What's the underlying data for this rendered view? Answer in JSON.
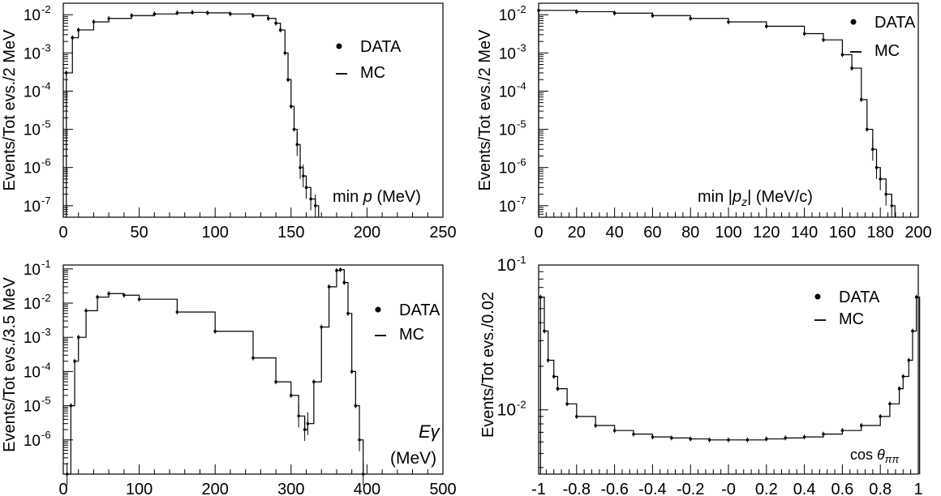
{
  "chart_data": [
    {
      "type": "line",
      "x_ticks": [
        "0",
        "50",
        "100",
        "150",
        "200",
        "250"
      ],
      "xlim": [
        0,
        250
      ],
      "ylog": true,
      "ylim": [
        5e-08,
        0.02
      ],
      "y_tick_labels": [
        {
          "base": "10",
          "exp": "-2",
          "val": 0.01
        },
        {
          "base": "10",
          "exp": "-3",
          "val": 0.001
        },
        {
          "base": "10",
          "exp": "-4",
          "val": 0.0001
        },
        {
          "base": "10",
          "exp": "-5",
          "val": 1e-05
        },
        {
          "base": "10",
          "exp": "-6",
          "val": 1e-06
        },
        {
          "base": "10",
          "exp": "-7",
          "val": 1e-07
        }
      ],
      "ylabel": "Events/Tot evs./2 MeV",
      "xlabel_parts": [
        "min ",
        "p",
        " (MeV)"
      ],
      "legend": [
        "DATA",
        "MC"
      ],
      "series": [
        {
          "name": "DATA",
          "x": [
            2,
            6,
            10,
            20,
            30,
            45,
            60,
            75,
            85,
            95,
            110,
            125,
            135,
            140,
            143,
            146,
            148,
            150,
            152,
            154,
            156,
            158,
            160,
            163,
            166
          ],
          "y": [
            0.0003,
            0.0025,
            0.004,
            0.0065,
            0.008,
            0.0095,
            0.0105,
            0.0112,
            0.0115,
            0.0112,
            0.0105,
            0.0095,
            0.008,
            0.006,
            0.004,
            0.001,
            0.0002,
            4e-05,
            1e-05,
            4e-06,
            1e-06,
            6e-07,
            3e-07,
            1.5e-07,
            1e-07
          ]
        },
        {
          "name": "MC",
          "x": [
            2,
            6,
            10,
            20,
            30,
            45,
            60,
            75,
            85,
            95,
            110,
            125,
            135,
            140,
            143,
            146,
            148,
            150,
            152,
            154,
            156,
            158,
            160,
            163,
            166
          ],
          "y": [
            0.0003,
            0.0025,
            0.004,
            0.0065,
            0.008,
            0.0095,
            0.0105,
            0.0112,
            0.0115,
            0.0112,
            0.0105,
            0.0095,
            0.008,
            0.006,
            0.004,
            0.001,
            0.0002,
            4e-05,
            1e-05,
            4e-06,
            1e-06,
            6e-07,
            3e-07,
            1.5e-07,
            1e-07
          ]
        }
      ]
    },
    {
      "type": "line",
      "x_ticks": [
        "0",
        "20",
        "40",
        "60",
        "80",
        "100",
        "120",
        "140",
        "160",
        "180",
        "200"
      ],
      "xlim": [
        0,
        200
      ],
      "ylog": true,
      "ylim": [
        5e-08,
        0.02
      ],
      "y_tick_labels": [
        {
          "base": "10",
          "exp": "-2",
          "val": 0.01
        },
        {
          "base": "10",
          "exp": "-3",
          "val": 0.001
        },
        {
          "base": "10",
          "exp": "-4",
          "val": 0.0001
        },
        {
          "base": "10",
          "exp": "-5",
          "val": 1e-05
        },
        {
          "base": "10",
          "exp": "-6",
          "val": 1e-06
        },
        {
          "base": "10",
          "exp": "-7",
          "val": 1e-07
        }
      ],
      "ylabel": "Events/Tot evs./2 MeV",
      "xlabel_parts": [
        "min |",
        "p",
        "z",
        "|   (MeV/c)"
      ],
      "legend": [
        "DATA",
        "MC"
      ],
      "series": [
        {
          "name": "DATA",
          "x": [
            0,
            20,
            40,
            60,
            80,
            100,
            120,
            140,
            150,
            160,
            165,
            170,
            173,
            176,
            178,
            180,
            183,
            186
          ],
          "y": [
            0.013,
            0.012,
            0.011,
            0.0095,
            0.008,
            0.0065,
            0.005,
            0.0032,
            0.0022,
            0.0009,
            0.0004,
            6e-05,
            1e-05,
            3e-06,
            1e-06,
            5e-07,
            2e-07,
            1e-07
          ]
        },
        {
          "name": "MC",
          "x": [
            0,
            20,
            40,
            60,
            80,
            100,
            120,
            140,
            150,
            160,
            165,
            170,
            173,
            176,
            178,
            180,
            183,
            186
          ],
          "y": [
            0.013,
            0.012,
            0.011,
            0.0095,
            0.008,
            0.0065,
            0.005,
            0.0032,
            0.0022,
            0.0009,
            0.0004,
            6e-05,
            1e-05,
            3e-06,
            1e-06,
            5e-07,
            2e-07,
            1e-07
          ]
        }
      ]
    },
    {
      "type": "line",
      "x_ticks": [
        "0",
        "100",
        "200",
        "300",
        "400",
        "500"
      ],
      "xlim": [
        0,
        500
      ],
      "ylog": true,
      "ylim": [
        1e-07,
        0.13
      ],
      "y_tick_labels": [
        {
          "base": "10",
          "exp": "-1",
          "val": 0.1
        },
        {
          "base": "10",
          "exp": "-2",
          "val": 0.01
        },
        {
          "base": "10",
          "exp": "-3",
          "val": 0.001
        },
        {
          "base": "10",
          "exp": "-4",
          "val": 0.0001
        },
        {
          "base": "10",
          "exp": "-5",
          "val": 1e-05
        },
        {
          "base": "10",
          "exp": "-6",
          "val": 1e-06
        }
      ],
      "ylabel": "Events/Tot evs./3.5 MeV",
      "xlabel_parts": [
        "E",
        "γ",
        "(MeV)"
      ],
      "legend": [
        "DATA",
        "MC"
      ],
      "series": [
        {
          "name": "DATA",
          "x": [
            5,
            10,
            15,
            20,
            30,
            45,
            60,
            80,
            100,
            150,
            200,
            250,
            280,
            300,
            310,
            318,
            322,
            330,
            340,
            350,
            360,
            365,
            370,
            375,
            380,
            385,
            390,
            395
          ],
          "y": [
            1e-07,
            1e-05,
            0.0002,
            0.001,
            0.006,
            0.015,
            0.019,
            0.017,
            0.013,
            0.0055,
            0.0015,
            0.00025,
            5e-05,
            2e-05,
            5e-06,
            2e-06,
            3e-06,
            5e-05,
            0.002,
            0.03,
            0.09,
            0.095,
            0.04,
            0.005,
            0.0001,
            1e-05,
            1e-06,
            1e-07
          ]
        },
        {
          "name": "MC",
          "x": [
            5,
            10,
            15,
            20,
            30,
            45,
            60,
            80,
            100,
            150,
            200,
            250,
            280,
            300,
            310,
            318,
            322,
            330,
            340,
            350,
            360,
            365,
            370,
            375,
            380,
            385,
            390,
            395
          ],
          "y": [
            1e-07,
            1e-05,
            0.0002,
            0.001,
            0.006,
            0.015,
            0.019,
            0.017,
            0.013,
            0.0055,
            0.0015,
            0.00025,
            5e-05,
            2e-05,
            5e-06,
            2e-06,
            3e-06,
            5e-05,
            0.002,
            0.03,
            0.09,
            0.095,
            0.04,
            0.005,
            0.0001,
            1e-05,
            1e-06,
            1e-07
          ]
        }
      ]
    },
    {
      "type": "line",
      "x_ticks": [
        "-1",
        "-0.8",
        "-0.6",
        "-0.4",
        "-0.2",
        "-0",
        "0.2",
        "0.4",
        "0.6",
        "0.8",
        "1"
      ],
      "xlim": [
        -1,
        1
      ],
      "ylog": true,
      "ylim": [
        0.0036,
        0.1
      ],
      "y_tick_labels": [
        {
          "base": "10",
          "exp": "-1",
          "val": 0.1
        },
        {
          "base": "10",
          "exp": "-2",
          "val": 0.01
        }
      ],
      "ylabel": "Events/Tot evs./0.02",
      "xlabel_parts": [
        "cos ",
        "θ",
        "ππ"
      ],
      "legend": [
        "DATA",
        "MC"
      ],
      "series": [
        {
          "name": "DATA",
          "x": [
            -0.99,
            -0.97,
            -0.95,
            -0.92,
            -0.9,
            -0.85,
            -0.8,
            -0.7,
            -0.6,
            -0.5,
            -0.4,
            -0.3,
            -0.2,
            -0.1,
            0,
            0.1,
            0.2,
            0.3,
            0.4,
            0.5,
            0.6,
            0.7,
            0.8,
            0.85,
            0.9,
            0.92,
            0.95,
            0.97,
            0.99
          ],
          "y": [
            0.06,
            0.035,
            0.022,
            0.017,
            0.014,
            0.011,
            0.009,
            0.0078,
            0.0072,
            0.0068,
            0.0065,
            0.0064,
            0.0063,
            0.0062,
            0.0062,
            0.0062,
            0.0063,
            0.0064,
            0.0065,
            0.0068,
            0.0072,
            0.0078,
            0.009,
            0.011,
            0.014,
            0.017,
            0.022,
            0.035,
            0.06
          ]
        },
        {
          "name": "MC",
          "x": [
            -0.99,
            -0.97,
            -0.95,
            -0.92,
            -0.9,
            -0.85,
            -0.8,
            -0.7,
            -0.6,
            -0.5,
            -0.4,
            -0.3,
            -0.2,
            -0.1,
            0,
            0.1,
            0.2,
            0.3,
            0.4,
            0.5,
            0.6,
            0.7,
            0.8,
            0.85,
            0.9,
            0.92,
            0.95,
            0.97,
            0.99
          ],
          "y": [
            0.06,
            0.035,
            0.022,
            0.017,
            0.014,
            0.011,
            0.009,
            0.0078,
            0.0072,
            0.0068,
            0.0065,
            0.0064,
            0.0063,
            0.0062,
            0.0062,
            0.0062,
            0.0063,
            0.0064,
            0.0065,
            0.0068,
            0.0072,
            0.0078,
            0.009,
            0.011,
            0.014,
            0.017,
            0.022,
            0.035,
            0.06
          ]
        }
      ]
    }
  ]
}
